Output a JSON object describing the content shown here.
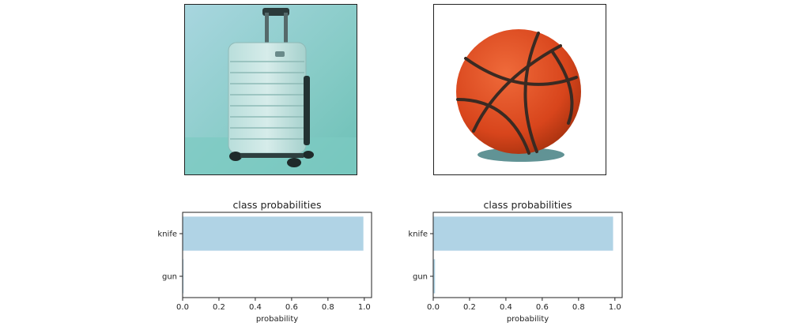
{
  "images": [
    {
      "subject": "suitcase",
      "background_color": "#8ccfca"
    },
    {
      "subject": "basketball",
      "background_color": "#ffffff"
    }
  ],
  "chart_data": [
    {
      "type": "bar",
      "orientation": "horizontal",
      "title": "class probabilities",
      "xlabel": "probability",
      "ylabel": "",
      "categories": [
        "knife",
        "gun"
      ],
      "values": [
        0.995,
        0.005
      ],
      "xlim": [
        0,
        1.04
      ],
      "xticks": [
        "0.0",
        "0.2",
        "0.4",
        "0.6",
        "0.8",
        "1.0"
      ],
      "bar_color": "#b0d3e5",
      "grid": false
    },
    {
      "type": "bar",
      "orientation": "horizontal",
      "title": "class probabilities",
      "xlabel": "probability",
      "ylabel": "",
      "categories": [
        "knife",
        "gun"
      ],
      "values": [
        0.99,
        0.01
      ],
      "xlim": [
        0,
        1.04
      ],
      "xticks": [
        "0.0",
        "0.2",
        "0.4",
        "0.6",
        "0.8",
        "1.0"
      ],
      "bar_color": "#b0d3e5",
      "grid": false
    }
  ]
}
